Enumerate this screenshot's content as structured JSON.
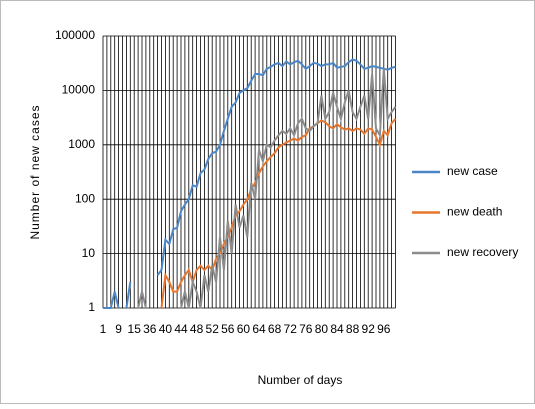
{
  "chart_data": {
    "type": "line",
    "y_label": "Number  of new cases",
    "x_label": "Number of days",
    "log_scale": true,
    "grid": true,
    "legend": "right",
    "ylim": [
      1,
      100000
    ],
    "yticks": [
      1,
      10,
      100,
      1000,
      10000,
      100000
    ],
    "categories": [
      "1",
      null,
      null,
      null,
      "9",
      null,
      null,
      null,
      "15",
      null,
      null,
      null,
      "36",
      null,
      null,
      null,
      "40",
      null,
      null,
      null,
      "44",
      null,
      null,
      null,
      "48",
      null,
      null,
      null,
      "52",
      null,
      null,
      null,
      "56",
      null,
      null,
      null,
      "60",
      null,
      null,
      null,
      "64",
      null,
      null,
      null,
      "68",
      null,
      null,
      null,
      "72",
      null,
      null,
      null,
      "76",
      null,
      null,
      null,
      "80",
      null,
      null,
      null,
      "84",
      null,
      null,
      null,
      "88",
      null,
      null,
      null,
      "92",
      null,
      null,
      null,
      "96",
      null,
      null,
      null
    ],
    "series": [
      {
        "name": "new case",
        "color": "#4a86c8",
        "values": [
          1,
          1,
          1,
          2,
          1,
          null,
          1,
          3,
          null,
          null,
          null,
          null,
          null,
          null,
          4,
          5,
          18,
          15,
          28,
          30,
          60,
          80,
          100,
          180,
          170,
          300,
          350,
          550,
          700,
          750,
          1000,
          1800,
          3000,
          5000,
          6000,
          9000,
          10000,
          11000,
          15000,
          20000,
          20000,
          19000,
          25000,
          27000,
          30000,
          32000,
          28000,
          34000,
          30000,
          33000,
          35000,
          30000,
          25000,
          28000,
          32000,
          31000,
          28000,
          30000,
          30000,
          32000,
          26000,
          27000,
          28000,
          33000,
          37000,
          35000,
          30000,
          25000,
          26000,
          28000,
          27000,
          26000,
          25000,
          24000,
          26000,
          27000
        ]
      },
      {
        "name": "new death",
        "color": "#e8762d",
        "values": [
          null,
          null,
          null,
          null,
          null,
          null,
          null,
          null,
          null,
          null,
          null,
          null,
          null,
          null,
          null,
          1,
          4,
          3,
          2,
          2,
          3,
          4,
          5,
          3,
          5,
          6,
          5,
          6,
          5,
          8,
          10,
          15,
          20,
          30,
          50,
          60,
          80,
          100,
          150,
          200,
          300,
          400,
          500,
          600,
          700,
          900,
          1000,
          1100,
          1200,
          1300,
          1200,
          1400,
          1500,
          2000,
          2200,
          2500,
          2800,
          2600,
          2200,
          2000,
          2400,
          2100,
          1900,
          2000,
          1800,
          2000,
          1900,
          1600,
          2000,
          1900,
          1400,
          1000,
          1800,
          1500,
          2500,
          3000
        ]
      },
      {
        "name": "new recovery",
        "color": "#8c8c8c",
        "values": [
          null,
          null,
          null,
          null,
          null,
          null,
          null,
          null,
          null,
          1,
          2,
          1,
          null,
          null,
          null,
          null,
          null,
          null,
          null,
          null,
          1,
          2,
          1,
          3,
          2,
          1,
          4,
          2,
          6,
          3,
          20,
          5,
          40,
          10,
          80,
          30,
          50,
          20,
          200,
          100,
          800,
          500,
          1000,
          900,
          1200,
          1500,
          1800,
          1600,
          2000,
          1500,
          2500,
          3000,
          2000,
          1800,
          2200,
          2500,
          8000,
          3000,
          4000,
          9000,
          5000,
          3000,
          6000,
          10000,
          4000,
          3000,
          5000,
          8000,
          3000,
          20000,
          2000,
          1500,
          25000,
          3000,
          4000,
          5000
        ]
      }
    ]
  }
}
